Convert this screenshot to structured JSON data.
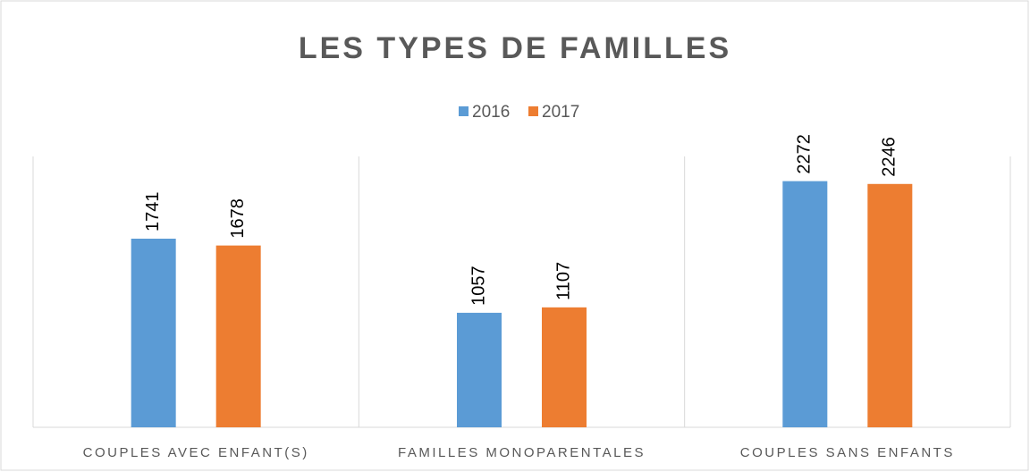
{
  "chart_data": {
    "type": "bar",
    "title": "LES TYPES DE FAMILLES",
    "categories": [
      "COUPLES AVEC ENFANT(S)",
      "FAMILLES MONOPARENTALES",
      "COUPLES SANS ENFANTS"
    ],
    "series": [
      {
        "name": "2016",
        "color": "#5b9bd5",
        "values": [
          1741,
          1057,
          2272
        ]
      },
      {
        "name": "2017",
        "color": "#ed7d31",
        "values": [
          1678,
          1107,
          2246
        ]
      }
    ],
    "ylim": [
      0,
      2500
    ],
    "legend": "top"
  }
}
